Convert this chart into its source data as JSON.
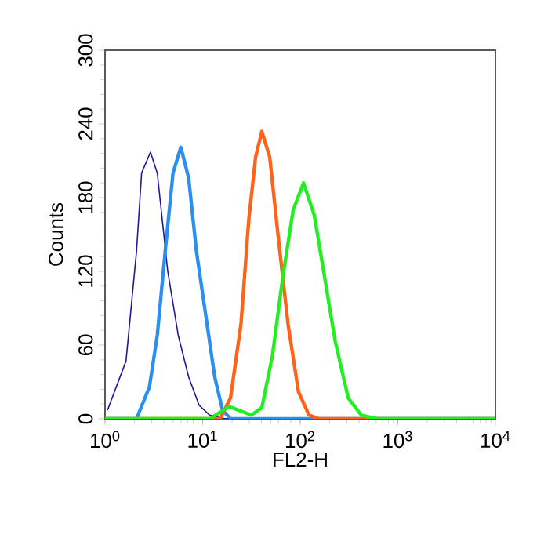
{
  "chart_data": {
    "type": "line",
    "xlabel": "FL2-H",
    "ylabel": "Counts",
    "log": "x",
    "xlim": [
      1,
      10000
    ],
    "ylim": [
      0,
      300
    ],
    "xticks": [
      {
        "value": 1,
        "label": "10$^{0}$"
      },
      {
        "value": 10,
        "label": "10$^{1}$"
      },
      {
        "value": 100,
        "label": "10$^{2}$"
      },
      {
        "value": 1000,
        "label": "10$^{3}$"
      },
      {
        "value": 10000,
        "label": "10$^{4}$"
      }
    ],
    "yticks": [
      0,
      60,
      120,
      180,
      240,
      300
    ],
    "grid": false,
    "marker": "none",
    "line_style": "solid",
    "series": [
      {
        "color": "#1a1aa0",
        "x": [
          1.06,
          1.64,
          2.1,
          2.37,
          2.92,
          3.43,
          4.39,
          5.62,
          7.19,
          9.21,
          11.8,
          17.1,
          10000
        ],
        "values": [
          7,
          47,
          136,
          200,
          217,
          200,
          120,
          68,
          34,
          11,
          3,
          0,
          0
        ]
      },
      {
        "color": "#2a8ff0",
        "x": [
          1,
          2.1,
          2.85,
          3.43,
          4.13,
          4.97,
          5.98,
          7.19,
          8.65,
          11.1,
          13.3,
          16.0,
          19.3,
          10000
        ],
        "values": [
          0,
          0,
          26,
          68,
          136,
          200,
          221,
          196,
          136,
          77,
          34,
          7,
          0,
          0
        ]
      },
      {
        "color": "#ff6319",
        "x": [
          1,
          15.1,
          19.3,
          24.7,
          29.7,
          34.9,
          40.4,
          48.7,
          58.6,
          75.0,
          95.9,
          123,
          157,
          10000
        ],
        "values": [
          0,
          0,
          17,
          77,
          162,
          213,
          234,
          213,
          153,
          77,
          22,
          3,
          0,
          0
        ]
      },
      {
        "color": "#22ee22",
        "x": [
          1,
          11.8,
          18.6,
          31.6,
          40.4,
          51.8,
          66.2,
          84.7,
          108,
          139,
          178,
          227,
          310,
          421,
          610,
          10000
        ],
        "values": [
          0,
          0,
          10,
          3,
          9,
          51,
          115,
          170,
          192,
          166,
          115,
          64,
          17,
          3,
          0,
          0
        ]
      }
    ]
  }
}
